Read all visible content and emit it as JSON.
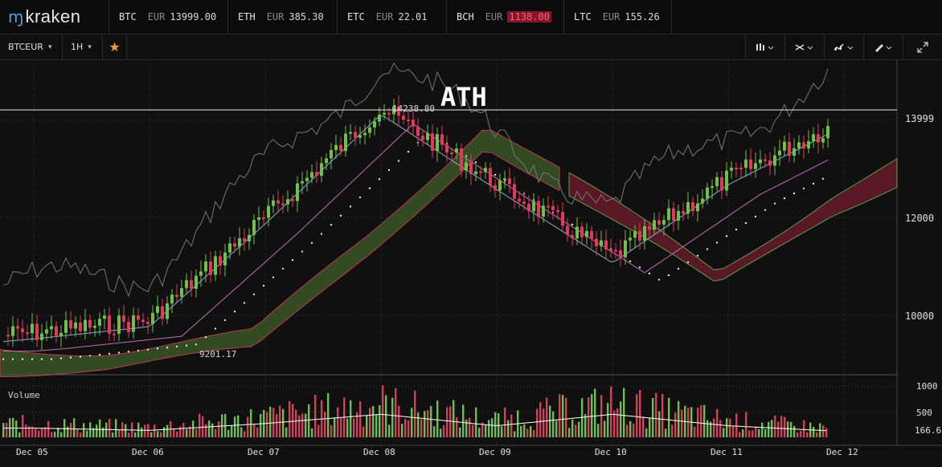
{
  "app": {
    "logo_text": "kraken",
    "logo_icon": "kraken-m-icon"
  },
  "tickers": [
    {
      "symbol": "BTC",
      "currency": "EUR",
      "price": "13999.00",
      "direction": "up"
    },
    {
      "symbol": "ETH",
      "currency": "EUR",
      "price": "385.30",
      "direction": "up"
    },
    {
      "symbol": "ETC",
      "currency": "EUR",
      "price": "22.01",
      "direction": "up"
    },
    {
      "symbol": "BCH",
      "currency": "EUR",
      "price": "1138.00",
      "direction": "down"
    },
    {
      "symbol": "LTC",
      "currency": "EUR",
      "price": "155.26",
      "direction": "up"
    }
  ],
  "toolbar": {
    "pair": "BTCEUR",
    "interval": "1H",
    "favorite_icon": "star-icon",
    "right_icons": [
      "candles-type-icon",
      "indicators-icon",
      "drawing-style-icon",
      "pencil-icon",
      "fullscreen-icon"
    ]
  },
  "colors": {
    "up": "#6fbf4a",
    "down": "#e03a5a",
    "background": "#101010",
    "grid": "#3a3a3a",
    "cloud_bull": "#3f5e2a",
    "cloud_bear": "#6a1a2c",
    "price_line_gray": "#777777",
    "tenkan": "#7fb0d0",
    "kijun": "#c070b0"
  },
  "chart_data": {
    "type": "candlestick",
    "pair": "BTCEUR",
    "interval": "1H",
    "annotation": "ATH",
    "high_label": "14238.80",
    "low_label": "9201.17",
    "current_price_label": "13999",
    "x_ticks": [
      "Dec 05",
      "Dec 06",
      "Dec 07",
      "Dec 08",
      "Dec 09",
      "Dec 10",
      "Dec 11",
      "Dec 12"
    ],
    "y_ticks": [
      10000,
      12000
    ],
    "volume_label": "Volume",
    "volume_ticks": [
      "1000",
      "500",
      "166.6"
    ],
    "ath_value": 14238.8,
    "ath_date": "Dec 08",
    "low_value": 9201.17,
    "low_date": "Dec 06",
    "last_close": 13999,
    "close_path": [
      {
        "t": "Dec 04",
        "v": 9450
      },
      {
        "t": "Dec 05",
        "v": 9650
      },
      {
        "t": "Dec 06",
        "v": 9900
      },
      {
        "t": "Dec 07",
        "v": 12000
      },
      {
        "t": "Dec 08",
        "v": 14238.8
      },
      {
        "t": "Dec 09",
        "v": 12700
      },
      {
        "t": "Dec 10",
        "v": 11200
      },
      {
        "t": "Dec 11",
        "v": 12800
      },
      {
        "t": "Dec 12",
        "v": 13999
      }
    ],
    "volume_path": [
      {
        "t": "Dec 05",
        "v": 400
      },
      {
        "t": "Dec 06",
        "v": 300
      },
      {
        "t": "Dec 07",
        "v": 600
      },
      {
        "t": "Dec 08",
        "v": 1000
      },
      {
        "t": "Dec 09",
        "v": 500
      },
      {
        "t": "Dec 10",
        "v": 1000
      },
      {
        "t": "Dec 11",
        "v": 500
      },
      {
        "t": "Dec 12",
        "v": 250
      }
    ],
    "grid": true
  }
}
